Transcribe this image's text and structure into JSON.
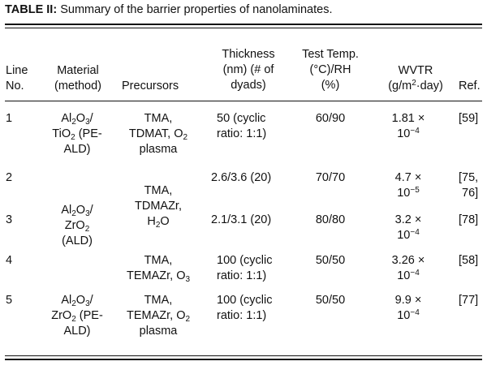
{
  "caption": {
    "label": "TABLE II:",
    "text": "Summary of the barrier properties of nanolaminates."
  },
  "headers": {
    "line": [
      "Line",
      "No."
    ],
    "material": [
      "Material",
      "(method)"
    ],
    "precursors": [
      "Precursors"
    ],
    "thickness": [
      "Thickness",
      "(nm) (# of",
      "dyads)"
    ],
    "temp": [
      "Test Temp.",
      "(°C)/RH",
      "(%)"
    ],
    "wvtr": [
      "WVTR",
      "(g/m2·day)"
    ],
    "ref": [
      "Ref."
    ]
  },
  "rows": [
    {
      "line": "1",
      "material": [
        "Al2O3/",
        "TiO2 (PE-",
        "ALD)"
      ],
      "precursors": [
        "TMA,",
        "TDMAT, O2",
        "plasma"
      ],
      "thickness": [
        "50 (cyclic",
        "ratio: 1:1)"
      ],
      "temp": "60/90",
      "wvtr": [
        "1.81 ×",
        "10−4"
      ],
      "ref": [
        "[59]"
      ]
    },
    {
      "line": "2",
      "precursors": [
        "TMA,",
        "TDMAZr,",
        "H2O"
      ],
      "thickness": [
        "2.6/3.6 (20)"
      ],
      "temp": "70/70",
      "wvtr": [
        "4.7 ×",
        "10−5"
      ],
      "ref": [
        "[75,",
        "76]"
      ]
    },
    {
      "line": "3",
      "material": [
        "Al2O3/",
        "ZrO2",
        "(ALD)"
      ],
      "thickness": [
        "2.1/3.1 (20)"
      ],
      "temp": "80/80",
      "wvtr": [
        "3.2 ×",
        "10−4"
      ],
      "ref": [
        "[78]"
      ]
    },
    {
      "line": "4",
      "precursors": [
        "TMA,",
        "TEMAZr, O3"
      ],
      "thickness": [
        "100 (cyclic",
        "ratio: 1:1)"
      ],
      "temp": "50/50",
      "wvtr": [
        "3.26 ×",
        "10−4"
      ],
      "ref": [
        "[58]"
      ]
    },
    {
      "line": "5",
      "material": [
        "Al2O3/",
        "ZrO2 (PE-",
        "ALD)"
      ],
      "precursors": [
        "TMA,",
        "TEMAZr, O2",
        "plasma"
      ],
      "thickness": [
        "100 (cyclic",
        "ratio: 1:1)"
      ],
      "temp": "50/50",
      "wvtr": [
        "9.9 ×",
        "10−4"
      ],
      "ref": [
        "[77]"
      ]
    }
  ]
}
